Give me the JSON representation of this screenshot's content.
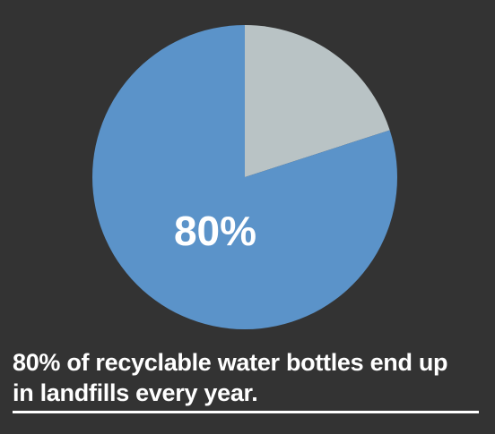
{
  "chart_data": {
    "type": "pie",
    "slices": [
      {
        "label": "80%",
        "value": 80,
        "color": "#5b93c9"
      },
      {
        "value": 20,
        "color": "#b9c3c5"
      }
    ],
    "start_angle_deg": 0,
    "direction": "clockwise"
  },
  "caption": {
    "line1": "80% of recyclable water bottles end up",
    "line2": "in landfills every year."
  },
  "colors": {
    "background": "#333333",
    "text": "#ffffff"
  }
}
